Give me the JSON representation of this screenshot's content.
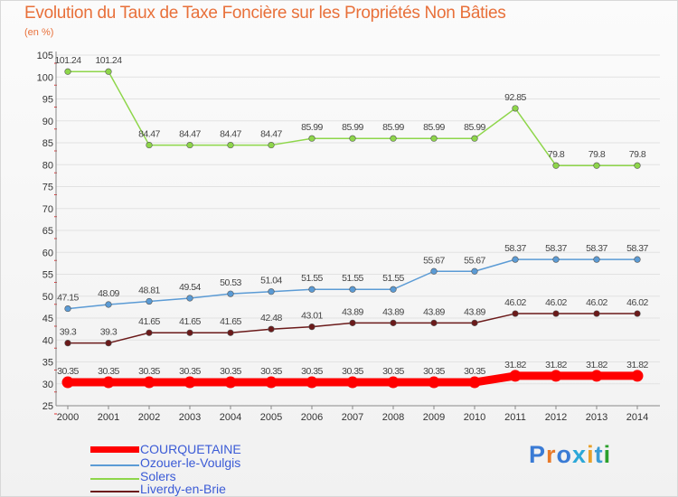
{
  "chart_data": {
    "type": "line",
    "title": "Evolution du Taux de Taxe Foncière sur les Propriétés Non Bâties",
    "ylabel": "(en %)",
    "xlabel": "",
    "ylim": [
      25,
      105
    ],
    "yticks": [
      "25",
      "30",
      "35",
      "40",
      "45",
      "50",
      "55",
      "60",
      "65",
      "70",
      "75",
      "80",
      "85",
      "90",
      "95",
      "100",
      "105"
    ],
    "categories": [
      "2000",
      "2001",
      "2002",
      "2003",
      "2004",
      "2005",
      "2006",
      "2007",
      "2008",
      "2009",
      "2010",
      "2011",
      "2012",
      "2013",
      "2014"
    ],
    "series": [
      {
        "name": "COURQUETAINE",
        "color": "#ff0000",
        "values": [
          30.35,
          30.35,
          30.35,
          30.35,
          30.35,
          30.35,
          30.35,
          30.35,
          30.35,
          30.35,
          30.35,
          31.82,
          31.82,
          31.82,
          31.82
        ],
        "labels": [
          "30.35",
          "30.35",
          "30.35",
          "30.35",
          "30.35",
          "30.35",
          "30.35",
          "30.35",
          "30.35",
          "30.35",
          "30.35",
          "31.82",
          "31.82",
          "31.82",
          "31.82"
        ]
      },
      {
        "name": "Ozouer-le-Voulgis",
        "color": "#5b9bd5",
        "values": [
          47.15,
          48.09,
          48.81,
          49.54,
          50.53,
          51.04,
          51.55,
          51.55,
          51.55,
          55.67,
          55.67,
          58.37,
          58.37,
          58.37,
          58.37
        ],
        "labels": [
          "47.15",
          "48.09",
          "48.81",
          "49.54",
          "50.53",
          "51.04",
          "51.55",
          "51.55",
          "51.55",
          "55.67",
          "55.67",
          "58.37",
          "58.37",
          "58.37",
          "58.37"
        ]
      },
      {
        "name": "Solers",
        "color": "#8ed64a",
        "values": [
          101.24,
          101.24,
          84.47,
          84.47,
          84.47,
          84.47,
          85.99,
          85.99,
          85.99,
          85.99,
          85.99,
          92.85,
          79.8,
          79.8,
          79.8
        ],
        "labels": [
          "101.24",
          "101.24",
          "84.47",
          "84.47",
          "84.47",
          "84.47",
          "85.99",
          "85.99",
          "85.99",
          "85.99",
          "85.99",
          "92.85",
          "79.8",
          "79.8",
          "79.8"
        ]
      },
      {
        "name": "Liverdy-en-Brie",
        "color": "#6b1a1a",
        "values": [
          39.3,
          39.3,
          41.65,
          41.65,
          41.65,
          42.48,
          43.01,
          43.89,
          43.89,
          43.89,
          43.89,
          46.02,
          46.02,
          46.02,
          46.02
        ],
        "labels": [
          "39.3",
          "39.3",
          "41.65",
          "41.65",
          "41.65",
          "42.48",
          "43.01",
          "43.89",
          "43.89",
          "43.89",
          "43.89",
          "46.02",
          "46.02",
          "46.02",
          "46.02"
        ]
      }
    ]
  },
  "legend": {
    "items": [
      {
        "name": "COURQUETAINE",
        "color": "#ff0000"
      },
      {
        "name": "Ozouer-le-Voulgis",
        "color": "#5b9bd5"
      },
      {
        "name": "Solers",
        "color": "#8ed64a"
      },
      {
        "name": "Liverdy-en-Brie",
        "color": "#6b1a1a"
      }
    ],
    "text_color": "#3b5bd6"
  },
  "logo": {
    "text": "Proxiti",
    "colors": [
      "#3a7bd5",
      "#e87a2a",
      "#3a7bd5",
      "#2ca8d8",
      "#e8a02a",
      "#3a9bd5",
      "#2ca02c"
    ]
  }
}
